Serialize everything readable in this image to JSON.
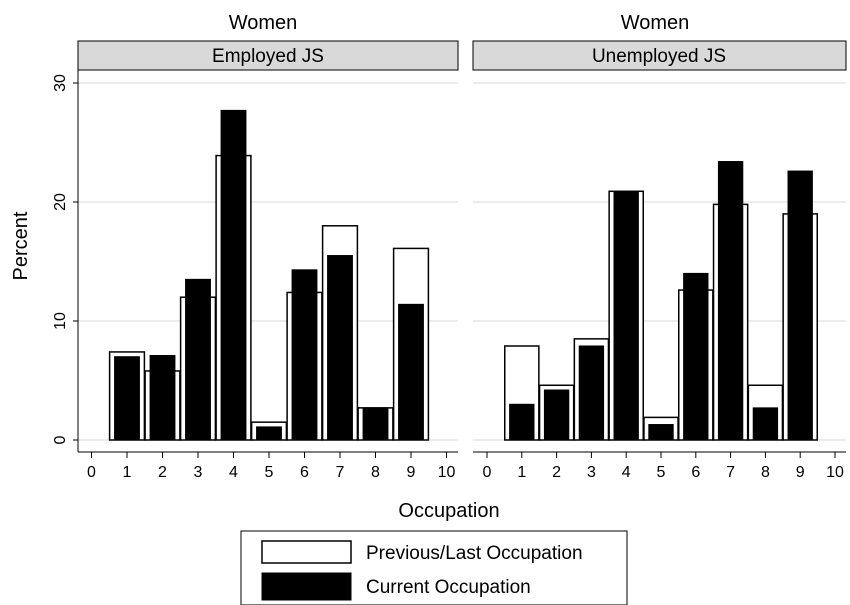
{
  "panels": [
    {
      "heading": "Women",
      "strip": "Employed JS"
    },
    {
      "heading": "Unemployed JS",
      "strip_heading": "Women"
    }
  ],
  "strip_labels": [
    "Employed JS",
    "Unemployed JS"
  ],
  "panel_titles": [
    "Women",
    "Women"
  ],
  "y_axis_label": "Percent",
  "x_axis_label": "Occupation",
  "legend": [
    "Previous/Last Occupation",
    "Current Occupation"
  ],
  "colors": {
    "previous_fill": "#ffffff",
    "current_fill": "#000000",
    "strip_bg": "#d9d9d9",
    "grid": "#d9d9d9"
  },
  "chart_data": [
    {
      "type": "bar",
      "title": "Women",
      "subtitle": "Employed JS",
      "xlabel": "Occupation",
      "ylabel": "Percent",
      "categories": [
        1,
        2,
        3,
        4,
        5,
        6,
        7,
        8,
        9
      ],
      "x_ticks": [
        0,
        1,
        2,
        3,
        4,
        5,
        6,
        7,
        8,
        9,
        10
      ],
      "y_ticks": [
        0,
        10,
        20,
        30
      ],
      "ylim": [
        0,
        30.5
      ],
      "xlim": [
        0,
        10
      ],
      "series": [
        {
          "name": "Previous/Last Occupation",
          "values": [
            7.4,
            5.8,
            12.0,
            23.9,
            1.5,
            12.4,
            18.0,
            2.7,
            16.1
          ]
        },
        {
          "name": "Current Occupation",
          "values": [
            7.0,
            7.1,
            13.5,
            27.7,
            1.1,
            14.3,
            15.5,
            2.7,
            11.4
          ]
        }
      ],
      "grid": true
    },
    {
      "type": "bar",
      "title": "Women",
      "subtitle": "Unemployed JS",
      "xlabel": "Occupation",
      "ylabel": "Percent",
      "categories": [
        1,
        2,
        3,
        4,
        5,
        6,
        7,
        8,
        9
      ],
      "x_ticks": [
        0,
        1,
        2,
        3,
        4,
        5,
        6,
        7,
        8,
        9,
        10
      ],
      "y_ticks": [
        0,
        10,
        20,
        30
      ],
      "ylim": [
        0,
        30.5
      ],
      "xlim": [
        0,
        10
      ],
      "series": [
        {
          "name": "Previous/Last Occupation",
          "values": [
            7.9,
            4.6,
            8.5,
            20.9,
            1.9,
            12.6,
            19.8,
            4.6,
            19.0
          ]
        },
        {
          "name": "Current Occupation",
          "values": [
            3.0,
            4.2,
            7.9,
            20.8,
            1.3,
            14.0,
            23.4,
            2.7,
            22.6
          ]
        }
      ],
      "grid": true
    }
  ]
}
